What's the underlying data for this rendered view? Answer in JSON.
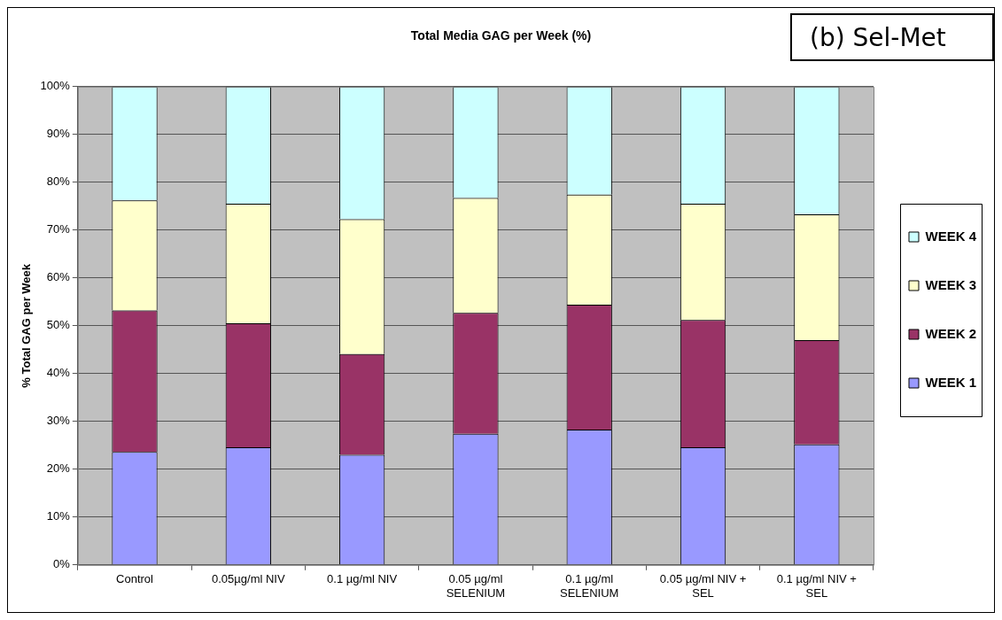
{
  "chart_data": {
    "type": "bar",
    "title": "Total Media GAG per Week (%)",
    "ylabel": "% Total GAG per Week",
    "categories": [
      "Control",
      "0.05µg/ml NIV",
      "0.1 µg/ml NIV",
      "0.05 µg/ml SELENIUM",
      "0.1 µg/ml SELENIUM",
      "0.05 µg/ml NIV + SEL",
      "0.1 µg/ml NIV + SEL"
    ],
    "series": [
      {
        "name": "WEEK 1",
        "color": "#9999ff",
        "values": [
          23.6,
          24.6,
          23.0,
          27.4,
          28.3,
          24.6,
          25.2
        ]
      },
      {
        "name": "WEEK 2",
        "color": "#993366",
        "values": [
          29.6,
          25.9,
          21.1,
          25.3,
          26.1,
          26.6,
          21.8
        ]
      },
      {
        "name": "WEEK 3",
        "color": "#ffffcc",
        "values": [
          23.0,
          25.0,
          28.2,
          24.0,
          23.0,
          24.3,
          26.3
        ]
      },
      {
        "name": "WEEK 4",
        "color": "#ccffff",
        "values": [
          23.8,
          24.5,
          27.7,
          23.3,
          22.6,
          24.5,
          26.7
        ]
      }
    ],
    "stacked": true,
    "ylim": [
      0,
      100
    ],
    "yticks": [
      {
        "value": 0,
        "label": "0%"
      },
      {
        "value": 10,
        "label": "10%"
      },
      {
        "value": 20,
        "label": "20%"
      },
      {
        "value": 30,
        "label": "30%"
      },
      {
        "value": 40,
        "label": "40%"
      },
      {
        "value": 50,
        "label": "50%"
      },
      {
        "value": 60,
        "label": "60%"
      },
      {
        "value": 70,
        "label": "70%"
      },
      {
        "value": 80,
        "label": "80%"
      },
      {
        "value": 90,
        "label": "90%"
      },
      {
        "value": 100,
        "label": "100%"
      }
    ],
    "grid": "y",
    "legend": "right",
    "annotations": [
      "(b) Sel-Met"
    ]
  }
}
